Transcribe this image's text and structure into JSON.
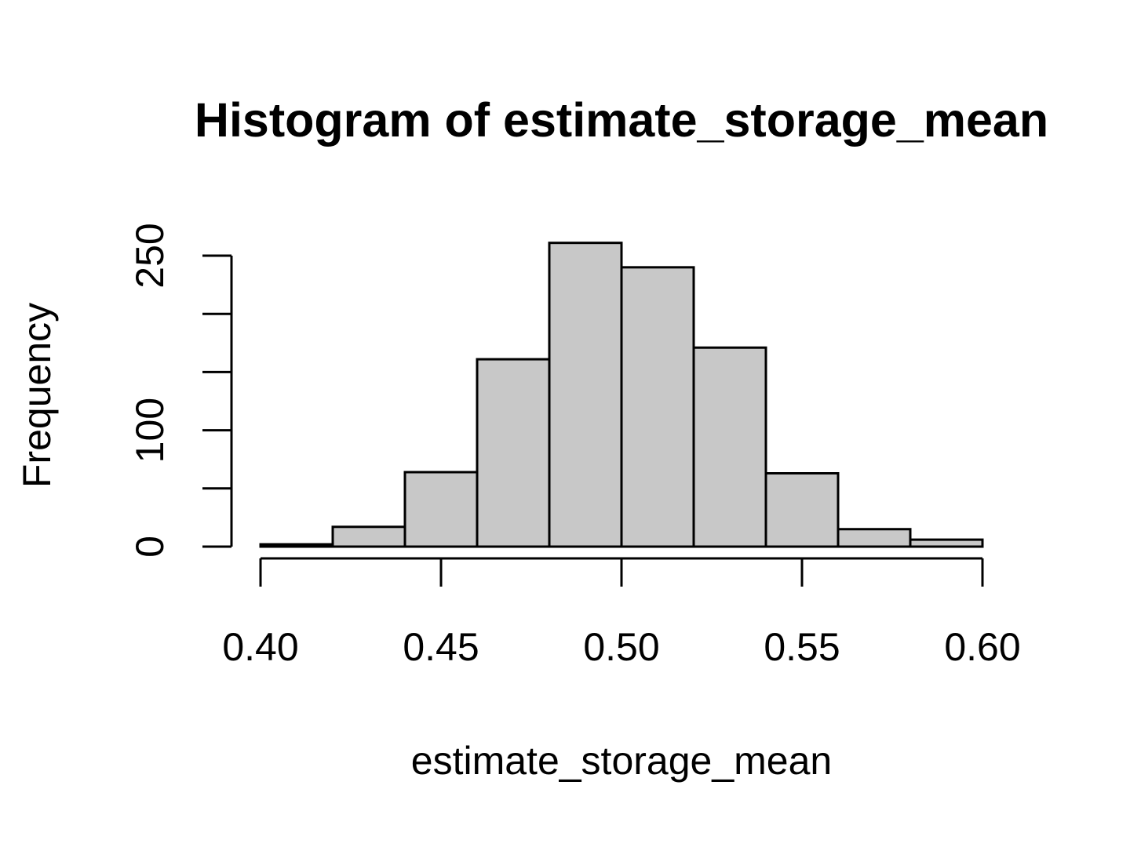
{
  "chart_data": {
    "type": "bar",
    "title": "Histogram of estimate_storage_mean",
    "xlabel": "estimate_storage_mean",
    "ylabel": "Frequency",
    "bins": [
      {
        "start": 0.4,
        "end": 0.42,
        "count": 2
      },
      {
        "start": 0.42,
        "end": 0.44,
        "count": 17
      },
      {
        "start": 0.44,
        "end": 0.46,
        "count": 64
      },
      {
        "start": 0.46,
        "end": 0.48,
        "count": 161
      },
      {
        "start": 0.48,
        "end": 0.5,
        "count": 261
      },
      {
        "start": 0.5,
        "end": 0.52,
        "count": 240
      },
      {
        "start": 0.52,
        "end": 0.54,
        "count": 171
      },
      {
        "start": 0.54,
        "end": 0.56,
        "count": 63
      },
      {
        "start": 0.56,
        "end": 0.58,
        "count": 15
      },
      {
        "start": 0.58,
        "end": 0.6,
        "count": 6
      }
    ],
    "xlim": [
      0.4,
      0.6
    ],
    "ylim": [
      0,
      250
    ],
    "xticks": [
      0.4,
      0.45,
      0.5,
      0.55,
      0.6
    ],
    "xtick_labels": [
      "0.40",
      "0.45",
      "0.50",
      "0.55",
      "0.60"
    ],
    "yticks": [
      0,
      50,
      100,
      150,
      200,
      250
    ],
    "ytick_labels": [
      "0",
      "",
      "100",
      "",
      "",
      "250"
    ],
    "bar_color": "#c8c8c8",
    "grid": false,
    "legend": "none"
  }
}
